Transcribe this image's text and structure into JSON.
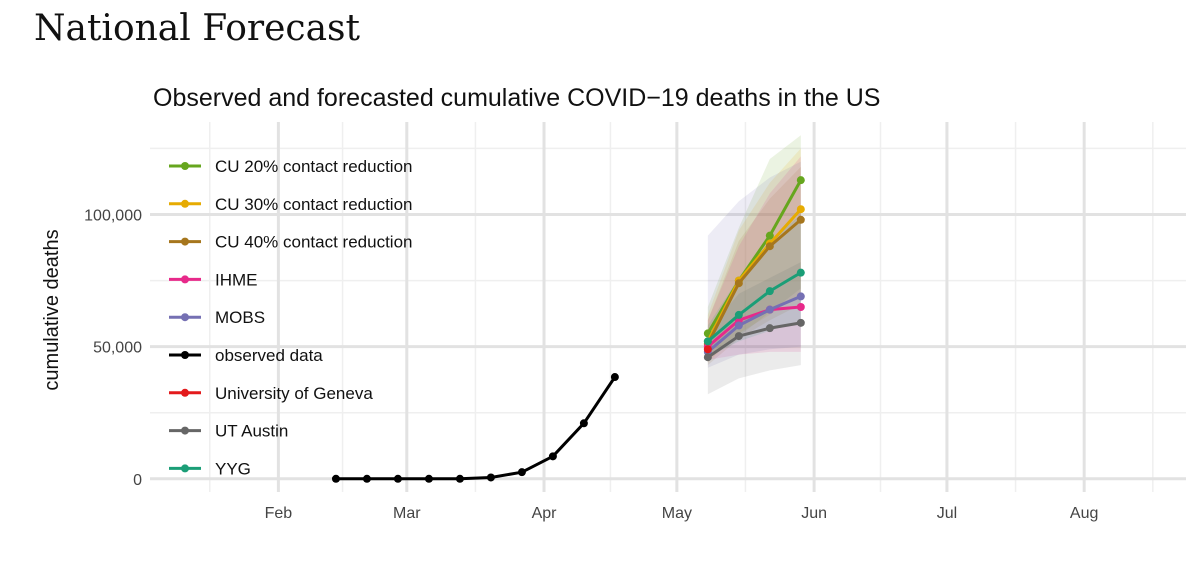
{
  "page": {
    "heading": "National Forecast"
  },
  "chart_data": {
    "type": "line",
    "title": "Observed and forecasted cumulative COVID−19 deaths in the US",
    "xlabel": "",
    "ylabel": "cumulative deaths",
    "x_tick_labels": [
      "Feb",
      "Mar",
      "Apr",
      "May",
      "Jun",
      "Jul",
      "Aug"
    ],
    "x_tick_days": [
      31,
      60,
      91,
      121,
      152,
      182,
      213
    ],
    "x_range_days": [
      2,
      236
    ],
    "ylim": [
      -5000,
      135000
    ],
    "y_ticks": [
      0,
      50000,
      100000
    ],
    "y_tick_labels": [
      "0",
      "50,000",
      "100,000"
    ],
    "grid": true,
    "legend_position": "top-left",
    "series": [
      {
        "name": "CU 20% contact reduction",
        "color": "#66a61e",
        "x": [
          128,
          135,
          142,
          149
        ],
        "y": [
          55000,
          75000,
          92000,
          113000
        ],
        "band_lo": [
          45000,
          54000,
          63000,
          72000
        ],
        "band_hi": [
          65000,
          95000,
          121000,
          130000
        ]
      },
      {
        "name": "CU 30% contact reduction",
        "color": "#e6ab02",
        "x": [
          128,
          135,
          142,
          149
        ],
        "y": [
          52000,
          75000,
          89000,
          102000
        ],
        "band_lo": [
          44000,
          55000,
          62000,
          70000
        ],
        "band_hi": [
          62000,
          94000,
          112000,
          125000
        ]
      },
      {
        "name": "CU 40% contact reduction",
        "color": "#a6761d",
        "x": [
          128,
          135,
          142,
          149
        ],
        "y": [
          51000,
          74000,
          88000,
          98000
        ],
        "band_lo": [
          43000,
          53000,
          60000,
          66000
        ],
        "band_hi": [
          60000,
          90000,
          106000,
          118000
        ]
      },
      {
        "name": "IHME",
        "color": "#e7298a",
        "x": [
          128,
          135,
          142,
          149
        ],
        "y": [
          50000,
          60000,
          64000,
          65000
        ],
        "band_lo": [
          45000,
          47000,
          48000,
          48000
        ],
        "band_hi": [
          60000,
          88000,
          108000,
          122000
        ]
      },
      {
        "name": "MOBS",
        "color": "#7570b3",
        "x": [
          128,
          135,
          142,
          149
        ],
        "y": [
          48000,
          58000,
          64000,
          69000
        ],
        "band_lo": [
          42000,
          47000,
          49000,
          50000
        ],
        "band_hi": [
          92000,
          105000,
          114000,
          120000
        ]
      },
      {
        "name": "observed data",
        "color": "#000000",
        "x": [
          44,
          51,
          58,
          65,
          72,
          79,
          86,
          93,
          100,
          107
        ],
        "y": [
          0,
          0,
          0,
          0,
          0,
          500,
          2500,
          8500,
          21000,
          38500
        ]
      },
      {
        "name": "University of Geneva",
        "color": "#e31a1c",
        "x": [
          128
        ],
        "y": [
          49000
        ]
      },
      {
        "name": "UT Austin",
        "color": "#666666",
        "x": [
          128,
          135,
          142,
          149
        ],
        "y": [
          46000,
          54000,
          57000,
          59000
        ],
        "band_lo": [
          32000,
          38000,
          41000,
          43000
        ],
        "band_hi": [
          56000,
          70000,
          76000,
          82000
        ]
      },
      {
        "name": "YYG",
        "color": "#1b9e77",
        "x": [
          128,
          135,
          142,
          149
        ],
        "y": [
          52000,
          62000,
          71000,
          78000
        ],
        "band_lo": [
          46000,
          52000,
          56000,
          60000
        ],
        "band_hi": [
          58000,
          76000,
          90000,
          100000
        ]
      }
    ]
  }
}
